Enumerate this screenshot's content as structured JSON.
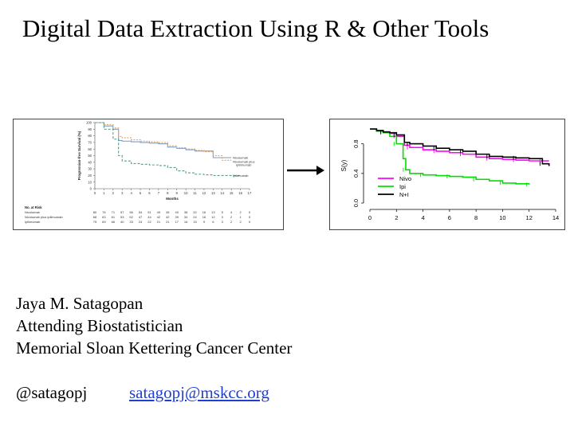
{
  "slide": {
    "title": "Digital Data Extraction Using R & Other Tools",
    "author": {
      "name": "Jaya M. Satagopan",
      "role": "Attending Biostatistician",
      "institution": "Memorial Sloan Kettering Cancer Center",
      "handle": "@satagopj",
      "email": "satagopj@mskcc.org"
    }
  },
  "chart_data": [
    {
      "type": "line",
      "ylabel": "Progression-free Survival (%)",
      "xlabel": "Months",
      "x_ticks": [
        0,
        1,
        2,
        3,
        4,
        5,
        6,
        7,
        8,
        9,
        10,
        11,
        12,
        13,
        14,
        15,
        16,
        17
      ],
      "y_ticks": [
        0,
        10,
        20,
        30,
        40,
        50,
        60,
        70,
        80,
        90,
        100
      ],
      "xlim": [
        0,
        17
      ],
      "ylim": [
        0,
        100
      ],
      "series": [
        {
          "name": "Nivolumab",
          "color": "#7a9cc6",
          "x": [
            0,
            1,
            2,
            2.6,
            3,
            4,
            5,
            6,
            7,
            8,
            9,
            10,
            11,
            12,
            13,
            14,
            15
          ],
          "y": [
            100,
            95,
            90,
            73,
            72,
            71,
            70,
            69,
            68,
            63,
            61,
            59,
            57,
            57,
            47,
            47,
            47
          ]
        },
        {
          "name": "Nivolumab plus ipilimumab",
          "color": "#e3a465",
          "x": [
            0,
            1,
            2,
            2.6,
            3,
            4,
            5,
            6,
            7,
            8,
            9,
            10,
            11,
            12,
            13,
            14,
            15
          ],
          "y": [
            100,
            97,
            92,
            79,
            77,
            74,
            72,
            71,
            70,
            65,
            62,
            60,
            58,
            56,
            50,
            43,
            43
          ]
        },
        {
          "name": "Ipilimumab",
          "color": "#5a9a8c",
          "x": [
            0,
            1,
            2,
            2.6,
            3,
            4,
            5,
            6,
            7,
            8,
            9,
            10,
            11,
            12,
            13,
            14,
            15,
            16
          ],
          "y": [
            100,
            90,
            75,
            50,
            42,
            38,
            37,
            36,
            35,
            32,
            27,
            24,
            22,
            21,
            20,
            20,
            20,
            20
          ]
        }
      ],
      "legend_labels": [
        "Nivolumab",
        "Nivolumab plus",
        "ipilimumab",
        "Ipilimumab"
      ],
      "risk_table": {
        "header": "No. at Risk",
        "rows": [
          {
            "label": "Nivolumab",
            "values": [
              80,
              76,
              71,
              57,
              56,
              54,
              51,
              49,
              45,
              40,
              38,
              32,
              16,
              13,
              5,
              4,
              2,
              0
            ]
          },
          {
            "label": "Nivolumab plus ipilimumab",
            "values": [
              68,
              63,
              61,
              53,
              52,
              47,
              44,
              42,
              42,
              39,
              34,
              24,
              16,
              12,
              3,
              2,
              1,
              0
            ]
          },
          {
            "label": "Ipilimumab",
            "values": [
              75,
              69,
              66,
              40,
              33,
              24,
              22,
              21,
              21,
              17,
              16,
              15,
              9,
              6,
              3,
              2,
              2,
              0
            ]
          }
        ]
      }
    },
    {
      "type": "line",
      "ylabel": "S(y)",
      "x_ticks": [
        0,
        2,
        4,
        6,
        8,
        10,
        12,
        14
      ],
      "y_ticks": [
        "0.0",
        "0.4",
        "0.8"
      ],
      "xlim": [
        0,
        14
      ],
      "ylim": [
        0,
        1
      ],
      "series": [
        {
          "name": "Nivo",
          "color": "#ff00ff",
          "x": [
            0,
            0.5,
            1,
            1.5,
            2,
            2.6,
            3,
            4,
            5,
            6,
            7,
            8,
            9,
            10,
            11,
            12,
            13,
            13.5
          ],
          "y": [
            1,
            0.98,
            0.96,
            0.94,
            0.9,
            0.78,
            0.75,
            0.72,
            0.7,
            0.68,
            0.66,
            0.62,
            0.6,
            0.59,
            0.58,
            0.57,
            0.57,
            0.57
          ]
        },
        {
          "name": "Ipi",
          "color": "#00e000",
          "x": [
            0,
            0.5,
            1,
            1.5,
            2,
            2.5,
            2.7,
            3,
            4,
            5,
            6,
            7,
            8,
            9,
            10,
            11,
            12
          ],
          "y": [
            1,
            0.97,
            0.95,
            0.9,
            0.8,
            0.6,
            0.45,
            0.4,
            0.38,
            0.37,
            0.36,
            0.35,
            0.32,
            0.3,
            0.27,
            0.26,
            0.25
          ]
        },
        {
          "name": "N+I",
          "color": "#000000",
          "x": [
            0,
            0.5,
            1,
            1.5,
            2,
            2.6,
            3,
            4,
            5,
            6,
            7,
            8,
            9,
            10,
            11,
            12,
            13,
            13.5
          ],
          "y": [
            1,
            0.98,
            0.96,
            0.95,
            0.92,
            0.82,
            0.8,
            0.77,
            0.74,
            0.72,
            0.7,
            0.66,
            0.63,
            0.62,
            0.61,
            0.6,
            0.53,
            0.5
          ]
        }
      ]
    }
  ]
}
